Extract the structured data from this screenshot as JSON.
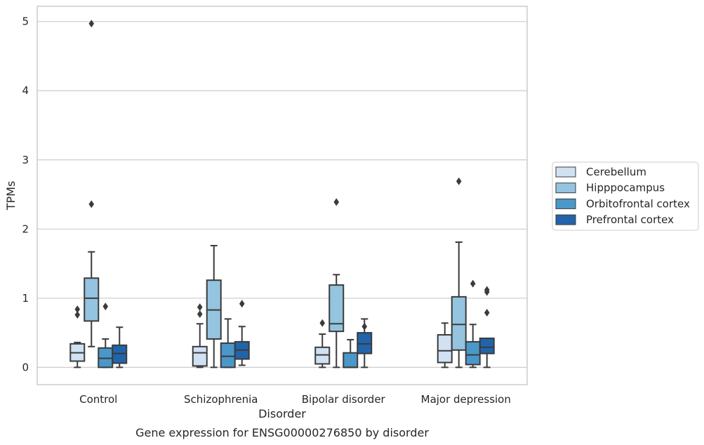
{
  "chart_data": {
    "type": "box",
    "title": "",
    "caption": "Gene expression for ENSG00000276850 by disorder",
    "xlabel": "Disorder",
    "ylabel": "TPMs",
    "ylim": [
      -0.25,
      5.22
    ],
    "yticks": [
      0,
      1,
      2,
      3,
      4,
      5
    ],
    "grid": "horizontal",
    "legend_position": "right",
    "categories": [
      "Control",
      "Schizophrenia",
      "Bipolar disorder",
      "Major depression"
    ],
    "series": [
      {
        "name": "Cerebellum",
        "color": "#d0e1f2",
        "boxes": [
          {
            "whislo": 0.0,
            "q1": 0.09,
            "med": 0.21,
            "q3": 0.34,
            "whishi": 0.36,
            "fliers": [
              0.84,
              0.76
            ]
          },
          {
            "whislo": 0.0,
            "q1": 0.02,
            "med": 0.21,
            "q3": 0.3,
            "whishi": 0.63,
            "fliers": [
              0.87,
              0.77
            ]
          },
          {
            "whislo": 0.0,
            "q1": 0.05,
            "med": 0.18,
            "q3": 0.29,
            "whishi": 0.48,
            "fliers": [
              0.64
            ]
          },
          {
            "whislo": 0.0,
            "q1": 0.07,
            "med": 0.24,
            "q3": 0.47,
            "whishi": 0.64,
            "fliers": []
          }
        ]
      },
      {
        "name": "Hipppocampus",
        "color": "#94c4df",
        "boxes": [
          {
            "whislo": 0.3,
            "q1": 0.67,
            "med": 1.0,
            "q3": 1.29,
            "whishi": 1.67,
            "fliers": [
              4.97,
              2.36
            ]
          },
          {
            "whislo": 0.0,
            "q1": 0.41,
            "med": 0.83,
            "q3": 1.26,
            "whishi": 1.76,
            "fliers": []
          },
          {
            "whislo": 0.0,
            "q1": 0.52,
            "med": 0.63,
            "q3": 1.19,
            "whishi": 1.34,
            "fliers": [
              2.39
            ]
          },
          {
            "whislo": 0.0,
            "q1": 0.25,
            "med": 0.62,
            "q3": 1.02,
            "whishi": 1.81,
            "fliers": [
              2.69
            ]
          }
        ]
      },
      {
        "name": "Orbitofrontal cortex",
        "color": "#4a98c9",
        "boxes": [
          {
            "whislo": 0.0,
            "q1": 0.0,
            "med": 0.13,
            "q3": 0.28,
            "whishi": 0.41,
            "fliers": [
              0.88
            ]
          },
          {
            "whislo": 0.0,
            "q1": 0.0,
            "med": 0.16,
            "q3": 0.35,
            "whishi": 0.7,
            "fliers": []
          },
          {
            "whislo": 0.0,
            "q1": 0.0,
            "med": 0.0,
            "q3": 0.21,
            "whishi": 0.4,
            "fliers": []
          },
          {
            "whislo": 0.0,
            "q1": 0.04,
            "med": 0.18,
            "q3": 0.37,
            "whishi": 0.62,
            "fliers": [
              1.21
            ]
          }
        ]
      },
      {
        "name": "Prefrontal cortex",
        "color": "#2164ab",
        "boxes": [
          {
            "whislo": 0.0,
            "q1": 0.06,
            "med": 0.2,
            "q3": 0.32,
            "whishi": 0.58,
            "fliers": []
          },
          {
            "whislo": 0.03,
            "q1": 0.12,
            "med": 0.25,
            "q3": 0.37,
            "whishi": 0.59,
            "fliers": [
              0.92
            ]
          },
          {
            "whislo": 0.0,
            "q1": 0.2,
            "med": 0.34,
            "q3": 0.5,
            "whishi": 0.7,
            "fliers": [
              0.59
            ]
          },
          {
            "whislo": 0.0,
            "q1": 0.2,
            "med": 0.29,
            "q3": 0.42,
            "whishi": 0.42,
            "fliers": [
              1.12,
              1.09,
              0.79
            ]
          }
        ]
      }
    ]
  }
}
